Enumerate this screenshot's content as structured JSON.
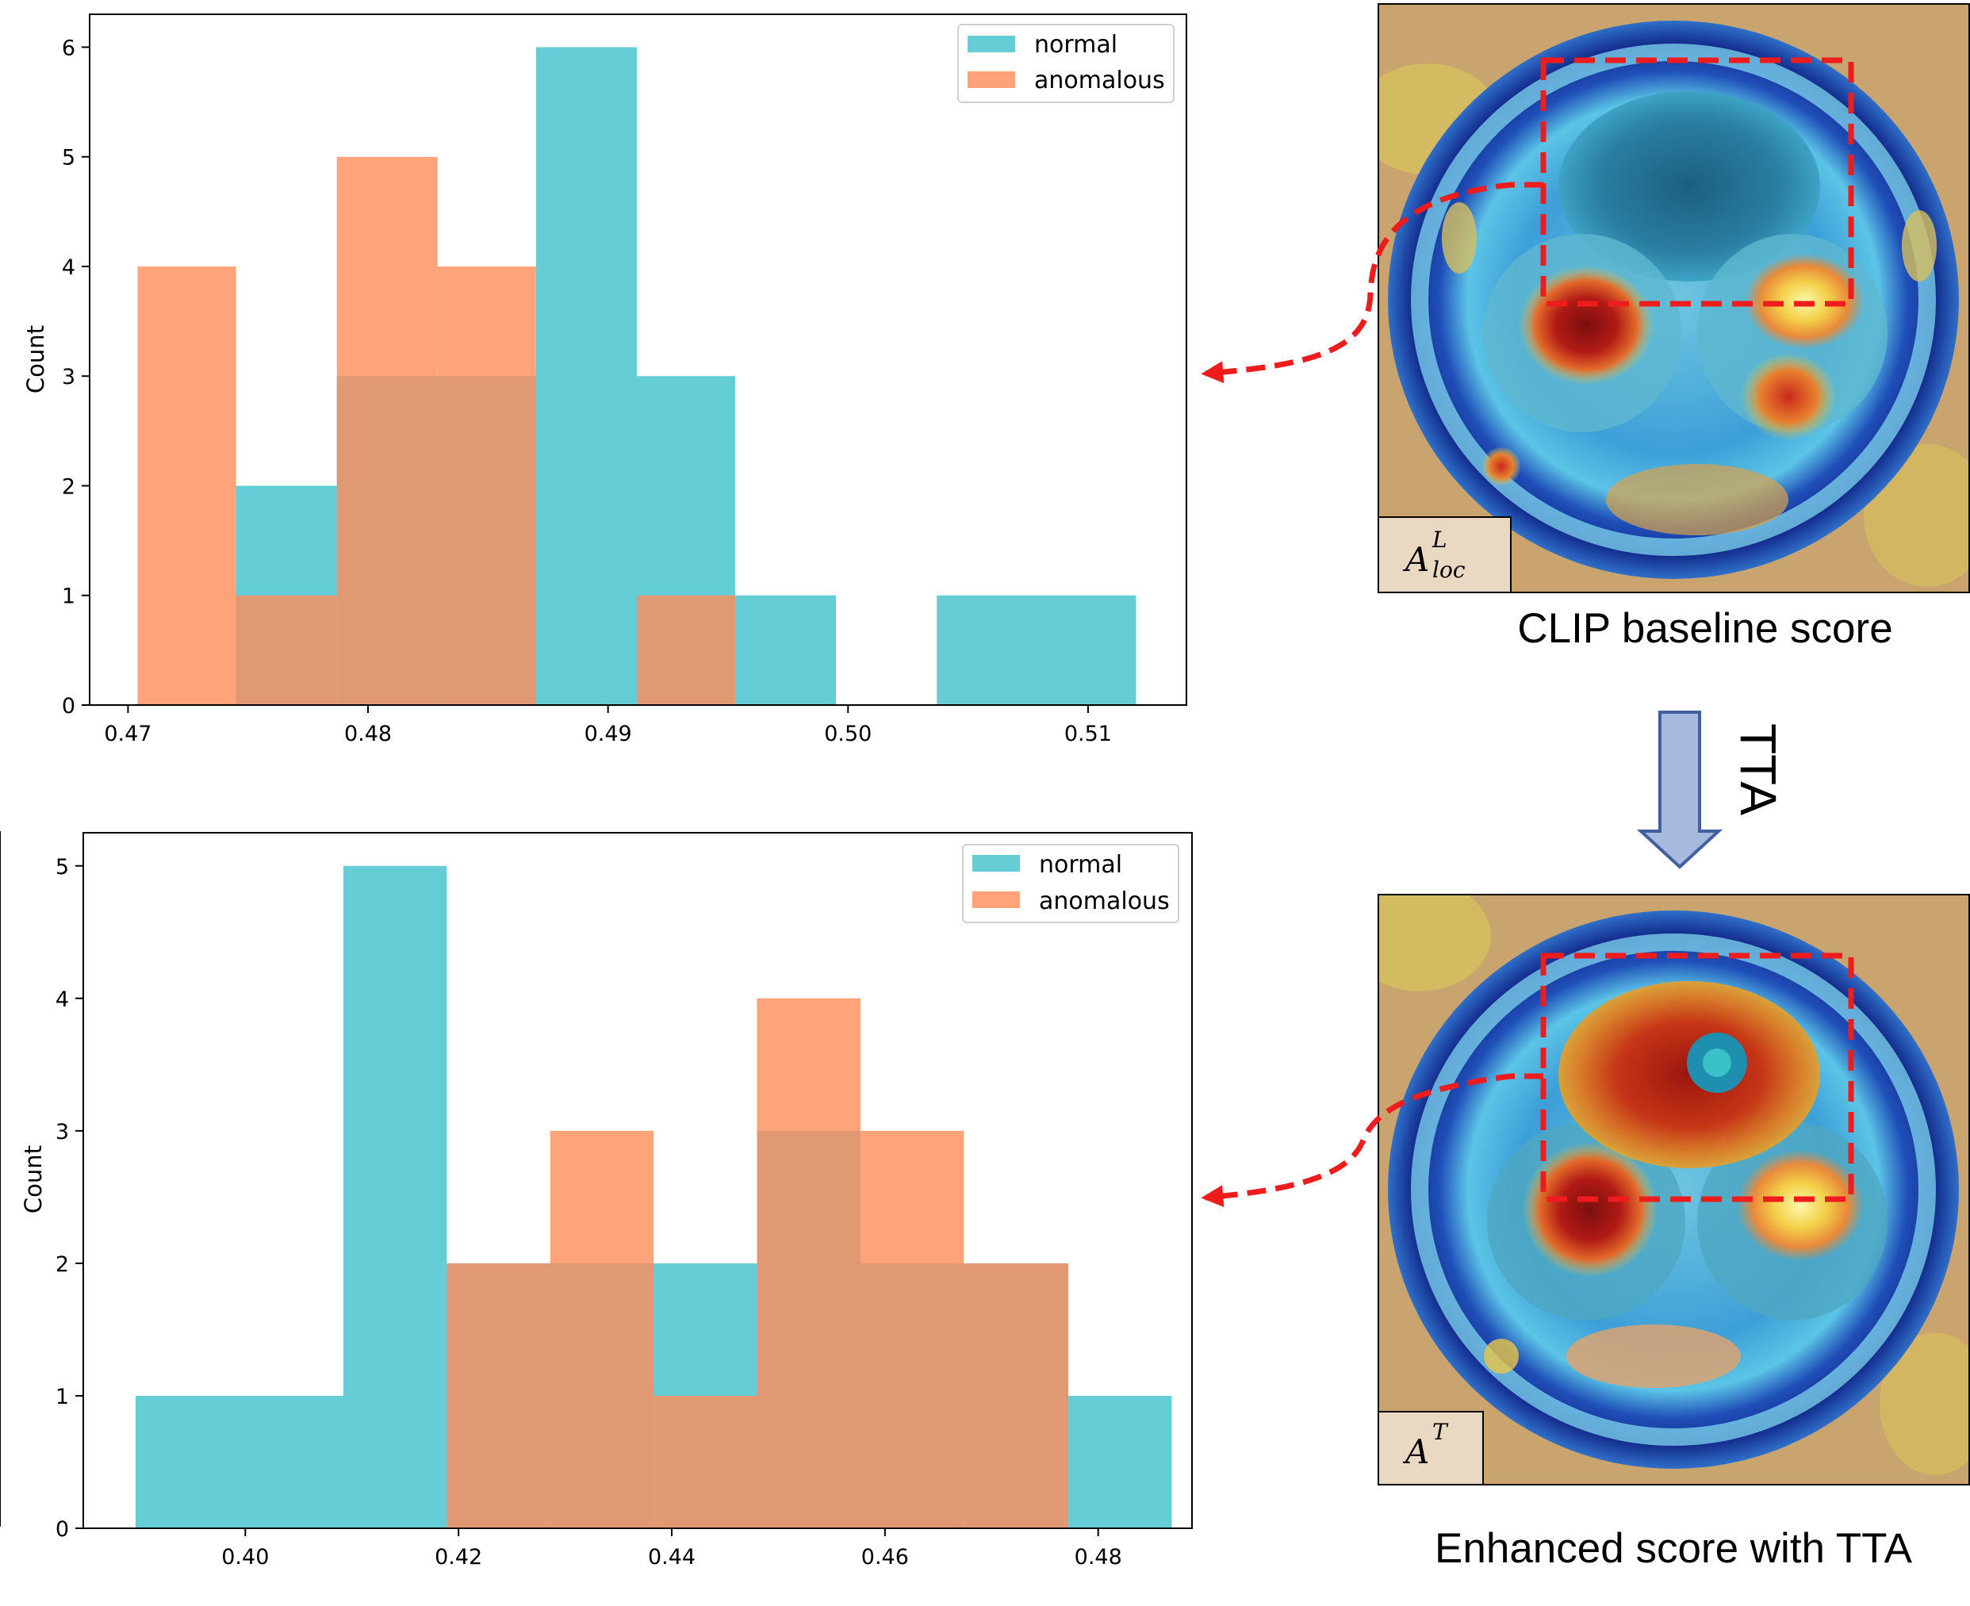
{
  "chart_data": [
    {
      "type": "histogram",
      "title": "",
      "xlabel": "",
      "ylabel": "Count",
      "xlim": [
        0.4684,
        0.5141
      ],
      "ylim": [
        0,
        6.3
      ],
      "xticks": [
        0.47,
        0.48,
        0.49,
        0.5,
        0.51
      ],
      "xtick_labels": [
        "0.47",
        "0.48",
        "0.49",
        "0.50",
        "0.51"
      ],
      "yticks": [
        0,
        1,
        2,
        3,
        4,
        5,
        6
      ],
      "ytick_labels": [
        "0",
        "1",
        "2",
        "3",
        "4",
        "5",
        "6"
      ],
      "legend": {
        "position": "top-right",
        "entries": [
          "normal",
          "anomalous"
        ]
      },
      "series": [
        {
          "name": "normal",
          "color": "#3ec0cb",
          "bin_edges": [
            0.4745,
            0.4787,
            0.487,
            0.4912,
            0.4953,
            0.4995,
            0.5037,
            0.512
          ],
          "counts": [
            2,
            3,
            6,
            3,
            1,
            0,
            1
          ]
        },
        {
          "name": "anomalous",
          "color": "#ff8c5a",
          "bin_edges": [
            0.4704,
            0.4745,
            0.4787,
            0.4829,
            0.487,
            0.4912,
            0.4953
          ],
          "counts": [
            4,
            1,
            5,
            4,
            0,
            1
          ]
        }
      ]
    },
    {
      "type": "histogram",
      "title": "",
      "xlabel": "",
      "ylabel": "Count",
      "xlim": [
        0.3848,
        0.4888
      ],
      "ylim": [
        0,
        5.25
      ],
      "xticks": [
        0.4,
        0.42,
        0.44,
        0.46,
        0.48
      ],
      "xtick_labels": [
        "0.40",
        "0.42",
        "0.44",
        "0.46",
        "0.48"
      ],
      "yticks": [
        0,
        1,
        2,
        3,
        4,
        5
      ],
      "ytick_labels": [
        "0",
        "1",
        "2",
        "3",
        "4",
        "5"
      ],
      "legend": {
        "position": "top-right",
        "entries": [
          "normal",
          "anomalous"
        ]
      },
      "series": [
        {
          "name": "normal",
          "color": "#3ec0cb",
          "bin_edges": [
            0.3897,
            0.4092,
            0.4189,
            0.4286,
            0.4383,
            0.448,
            0.4577,
            0.4674,
            0.4772,
            0.4869
          ],
          "counts": [
            1,
            5,
            2,
            2,
            2,
            3,
            2,
            2,
            1
          ]
        },
        {
          "name": "anomalous",
          "color": "#ff8c5a",
          "bin_edges": [
            0.4189,
            0.4286,
            0.4383,
            0.448,
            0.4577,
            0.4674,
            0.4772
          ],
          "counts": [
            2,
            3,
            1,
            4,
            3,
            2
          ]
        }
      ]
    }
  ],
  "heatmaps": {
    "top": {
      "badge_main": "A",
      "badge_sup": "L",
      "badge_sub": "loc",
      "caption": "CLIP baseline score"
    },
    "bottom": {
      "badge_main": "A",
      "badge_sup": "T",
      "caption": "Enhanced score with TTA"
    }
  },
  "transition": {
    "label": "TTA",
    "arrow_color": "#a8b9e0",
    "arrow_stroke": "#41609d"
  },
  "colors": {
    "connector": "#ee1c1c",
    "normal": "#3ec0cb",
    "anomalous": "#ff8c5a"
  }
}
